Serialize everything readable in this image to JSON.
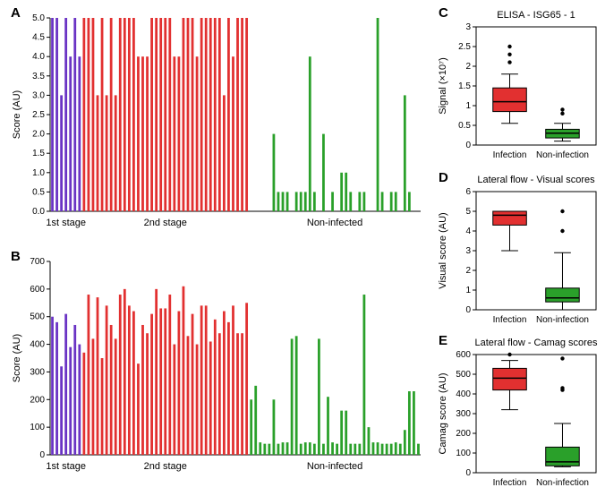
{
  "colors": {
    "purple": "#6a33c4",
    "red": "#e23030",
    "green": "#2aa02a",
    "black": "#000000",
    "white": "#ffffff"
  },
  "panelA": {
    "label": "A",
    "ylabel": "Score (AU)",
    "ylim": [
      0,
      5
    ],
    "ytick_step": 0.5,
    "groups": {
      "first": {
        "label": "1st stage",
        "color": "purple",
        "values": [
          5,
          5,
          3,
          5,
          4,
          5,
          4
        ]
      },
      "second": {
        "label": "2nd stage",
        "color": "red",
        "values": [
          5,
          5,
          5,
          3,
          5,
          3,
          5,
          3,
          5,
          5,
          5,
          5,
          4,
          4,
          4,
          5,
          5,
          5,
          5,
          5,
          4,
          4,
          5,
          5,
          5,
          4,
          5,
          5,
          5,
          5,
          5,
          3,
          5,
          4,
          5,
          5,
          5
        ]
      },
      "non": {
        "label": "Non-infected",
        "color": "green",
        "values": [
          0,
          0,
          0,
          0,
          0,
          2,
          0.5,
          0.5,
          0.5,
          0,
          0.5,
          0.5,
          0.5,
          4,
          0.5,
          0,
          2,
          0,
          0.5,
          0,
          1,
          1,
          0.5,
          0,
          0.5,
          0.5,
          0,
          0,
          5,
          0.5,
          0,
          0.5,
          0.5,
          0,
          3,
          0.5,
          0,
          0
        ]
      }
    }
  },
  "panelB": {
    "label": "B",
    "ylabel": "Score (AU)",
    "ylim": [
      0,
      700
    ],
    "ytick_step": 100,
    "groups": {
      "first": {
        "label": "1st stage",
        "color": "purple",
        "values": [
          500,
          480,
          320,
          510,
          390,
          470,
          400
        ]
      },
      "second": {
        "label": "2nd stage",
        "color": "red",
        "values": [
          370,
          580,
          420,
          570,
          350,
          540,
          470,
          420,
          580,
          600,
          540,
          520,
          330,
          470,
          440,
          510,
          600,
          530,
          530,
          580,
          400,
          520,
          610,
          430,
          510,
          400,
          540,
          540,
          410,
          490,
          440,
          520,
          480,
          540,
          440,
          440,
          550
        ]
      },
      "non": {
        "label": "Non-infected",
        "color": "green",
        "values": [
          200,
          250,
          45,
          40,
          40,
          200,
          40,
          45,
          45,
          420,
          430,
          40,
          45,
          45,
          40,
          420,
          40,
          210,
          45,
          40,
          160,
          160,
          40,
          40,
          40,
          580,
          100,
          45,
          45,
          40,
          40,
          40,
          45,
          40,
          90,
          230,
          230,
          40
        ]
      }
    }
  },
  "box": {
    "xticks": [
      "Infection",
      "Non-infection"
    ],
    "C": {
      "label": "C",
      "title": "ELISA - ISG65 - 1",
      "ylabel": "Signal (×10⁷)",
      "ylim": [
        0,
        3.0
      ],
      "yticks": [
        0,
        0.5,
        1.0,
        1.5,
        2.0,
        2.5,
        3.0
      ],
      "boxes": [
        {
          "color": "red",
          "min": 0.55,
          "q1": 0.85,
          "median": 1.1,
          "q3": 1.45,
          "max": 1.8,
          "outliers": [
            2.1,
            2.3,
            2.5
          ]
        },
        {
          "color": "green",
          "min": 0.1,
          "q1": 0.18,
          "median": 0.3,
          "q3": 0.4,
          "max": 0.55,
          "outliers": [
            0.8,
            0.9
          ]
        }
      ]
    },
    "D": {
      "label": "D",
      "title": "Lateral flow - Visual scores",
      "ylabel": "Visual score (AU)",
      "ylim": [
        0,
        6
      ],
      "yticks": [
        0,
        1,
        2,
        3,
        4,
        5,
        6
      ],
      "boxes": [
        {
          "color": "red",
          "min": 3.0,
          "q1": 4.3,
          "median": 4.8,
          "q3": 5.0,
          "max": 5.0,
          "outliers": []
        },
        {
          "color": "green",
          "min": 0.0,
          "q1": 0.4,
          "median": 0.6,
          "q3": 1.1,
          "max": 2.9,
          "outliers": [
            4.0,
            5.0
          ]
        }
      ]
    },
    "E": {
      "label": "E",
      "title": "Lateral flow - Camag scores",
      "ylabel": "Camag score (AU)",
      "ylim": [
        0,
        600
      ],
      "yticks": [
        0,
        100,
        200,
        300,
        400,
        500,
        600
      ],
      "boxes": [
        {
          "color": "red",
          "min": 320,
          "q1": 420,
          "median": 480,
          "q3": 530,
          "max": 570,
          "outliers": [
            600
          ]
        },
        {
          "color": "green",
          "min": 30,
          "q1": 35,
          "median": 55,
          "q3": 130,
          "max": 250,
          "outliers": [
            420,
            430,
            580
          ]
        }
      ]
    }
  }
}
